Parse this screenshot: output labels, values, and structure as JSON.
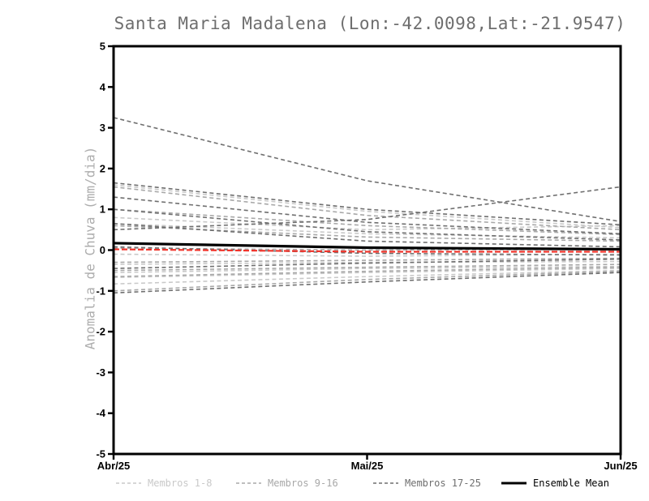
{
  "chart_data": {
    "type": "line",
    "title": "Santa Maria Madalena (Lon:-42.0098,Lat:-21.9547)",
    "ylabel": "Anomalia de Chuva (mm/dia)",
    "xlabel": "",
    "x_categories": [
      "Abr/25",
      "Mai/25",
      "Jun/25"
    ],
    "ylim": [
      -5,
      5
    ],
    "yticks": [
      5,
      4,
      3,
      2,
      1,
      0,
      -1,
      -2,
      -3,
      -4,
      -5
    ],
    "grid": false,
    "legend_position": "bottom",
    "series_groups": [
      {
        "name": "Membros 1-8",
        "color": "#c9c9c9",
        "style": "dashed",
        "members": [
          [
            1.6,
            0.95,
            0.55
          ],
          [
            0.8,
            0.5,
            0.6
          ],
          [
            0.65,
            0.4,
            0.3
          ],
          [
            -0.1,
            -0.15,
            -0.1
          ],
          [
            -0.35,
            -0.3,
            -0.28
          ],
          [
            -0.55,
            -0.45,
            -0.4
          ],
          [
            -0.67,
            -0.55,
            -0.45
          ],
          [
            -0.83,
            -0.65,
            -0.5
          ]
        ]
      },
      {
        "name": "Membros 9-16",
        "color": "#a8a8a8",
        "style": "dashed",
        "members": [
          [
            1.55,
            0.85,
            0.5
          ],
          [
            1.0,
            0.6,
            0.38
          ],
          [
            0.6,
            0.32,
            0.22
          ],
          [
            0.05,
            0.0,
            0.02
          ],
          [
            -0.3,
            -0.25,
            -0.2
          ],
          [
            -0.5,
            -0.42,
            -0.35
          ],
          [
            -0.65,
            -0.52,
            -0.42
          ],
          [
            -1.0,
            -0.72,
            -0.52
          ]
        ]
      },
      {
        "name": "Membros 17-25",
        "color": "#6f6f6f",
        "style": "dashed",
        "members": [
          [
            3.25,
            1.7,
            0.7
          ],
          [
            0.5,
            0.75,
            1.55
          ],
          [
            1.65,
            1.0,
            0.62
          ],
          [
            1.3,
            0.68,
            0.4
          ],
          [
            1.0,
            0.45,
            0.25
          ],
          [
            0.65,
            0.22,
            0.08
          ],
          [
            0.08,
            -0.08,
            -0.12
          ],
          [
            -0.45,
            -0.32,
            -0.22
          ],
          [
            -1.05,
            -0.78,
            -0.55
          ]
        ]
      }
    ],
    "zero_reference": {
      "name": "Zero reference",
      "color": "#f0342b",
      "style": "dashed",
      "values": [
        0.02,
        -0.04,
        -0.04
      ]
    },
    "ensemble_mean": {
      "name": "Ensemble Mean",
      "color": "#000000",
      "style": "solid",
      "values": [
        0.17,
        0.06,
        0.02
      ]
    },
    "legend": [
      {
        "label": "Membros 1-8",
        "color": "#c9c9c9",
        "style": "dashed"
      },
      {
        "label": "Membros 9-16",
        "color": "#a8a8a8",
        "style": "dashed"
      },
      {
        "label": "Membros 17-25",
        "color": "#6f6f6f",
        "style": "dashed"
      },
      {
        "label": "Ensemble Mean",
        "color": "#000000",
        "style": "solid"
      }
    ]
  }
}
